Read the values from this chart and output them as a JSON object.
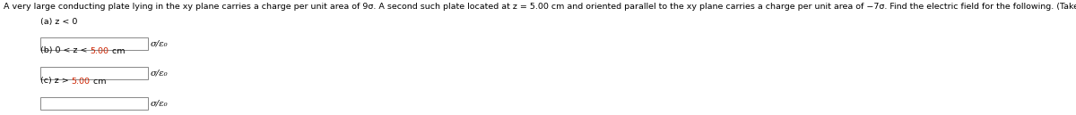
{
  "title": "A very large conducting plate lying in the xy plane carries a charge per unit area of 9σ. A second such plate located at z = 5.00 cm and oriented parallel to the xy plane carries a charge per unit area of −7σ. Find the electric field for the following. (Take upward to be in the positive z-direction.)",
  "normal_color": "#000000",
  "red_color": "#cc2200",
  "bg_color": "#ffffff",
  "title_fontsize": 6.8,
  "label_fontsize": 6.8,
  "suffix_fontsize": 7.2,
  "box_edge_color": "#888888",
  "box_face_color": "#ffffff",
  "parts": [
    {
      "label_segs": [
        [
          "(a) z < 0",
          "black"
        ]
      ],
      "suffix": "σ/ε₀"
    },
    {
      "label_segs": [
        [
          "(b) 0 < z < ",
          "black"
        ],
        [
          "5.00",
          "red"
        ],
        [
          " cm",
          "black"
        ]
      ],
      "suffix": "σ/ε₀"
    },
    {
      "label_segs": [
        [
          "(c) z > ",
          "black"
        ],
        [
          "5.00",
          "red"
        ],
        [
          " cm",
          "black"
        ]
      ],
      "suffix": "σ/ε₀"
    }
  ]
}
